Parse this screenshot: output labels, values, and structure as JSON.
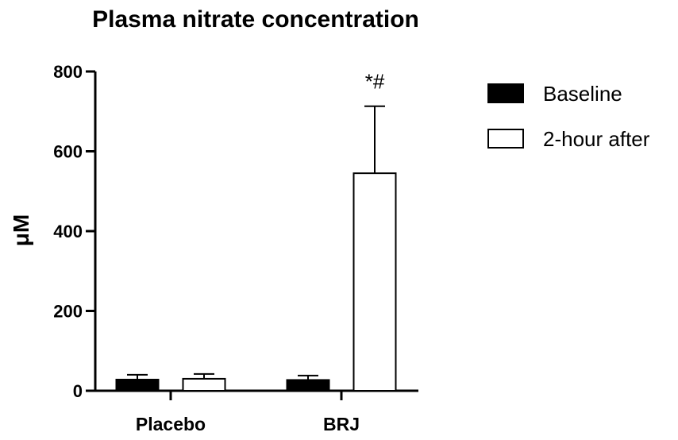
{
  "chart_data": {
    "type": "bar",
    "title": "Plasma nitrate concentration",
    "xlabel": "",
    "ylabel": "μM",
    "categories": [
      "Placebo",
      "BRJ"
    ],
    "ylim": [
      0,
      800
    ],
    "yticks": [
      0,
      200,
      400,
      600,
      800
    ],
    "series": [
      {
        "name": "Baseline",
        "values": [
          28,
          27
        ],
        "errors": [
          12,
          11
        ],
        "fill": "#000000"
      },
      {
        "name": "2-hour after",
        "values": [
          30,
          545
        ],
        "errors": [
          12,
          168
        ],
        "fill": "#ffffff"
      }
    ],
    "annotations": [
      {
        "text": "*#",
        "category": "BRJ",
        "series": "2-hour after"
      }
    ],
    "legend_position": "right",
    "grid": false
  }
}
